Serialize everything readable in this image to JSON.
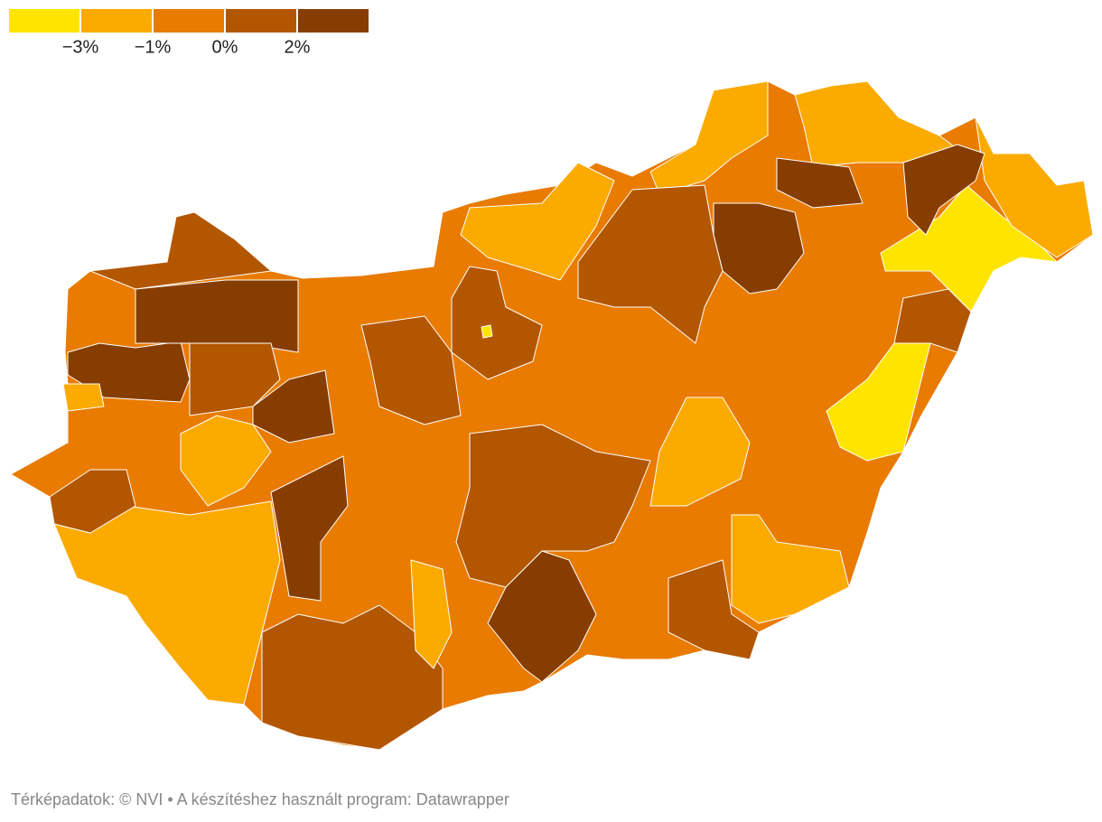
{
  "legend": {
    "colors": [
      "#ffe400",
      "#fbaa00",
      "#e87b00",
      "#b35600",
      "#873d00"
    ],
    "ticks": [
      "−3%",
      "−1%",
      "0%",
      "2%"
    ]
  },
  "footer": {
    "text": "Térképadatok: © NVI  • A készítéshez használt program: Datawrapper"
  }
}
